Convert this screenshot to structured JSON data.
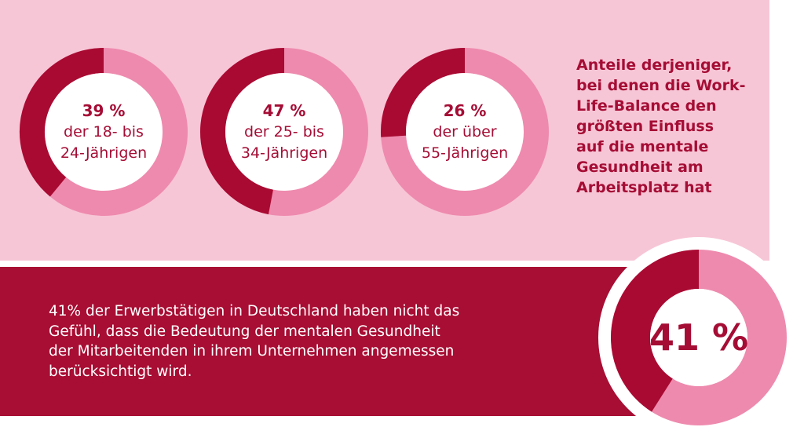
{
  "chart_data": [
    {
      "type": "donut",
      "values": [
        39
      ],
      "value_labels": [
        "39 %"
      ],
      "label_lines": [
        "der 18- bis",
        "24-Jährigen"
      ],
      "color": "#a90a32",
      "track_color": "#ee8aae"
    },
    {
      "type": "donut",
      "values": [
        47
      ],
      "value_labels": [
        "47 %"
      ],
      "label_lines": [
        "der 25- bis",
        "34-Jährigen"
      ],
      "color": "#a90a32",
      "track_color": "#ee8aae"
    },
    {
      "type": "donut",
      "values": [
        26
      ],
      "value_labels": [
        "26 %"
      ],
      "label_lines": [
        "der über",
        "55-Jährigen"
      ],
      "color": "#a90a32",
      "track_color": "#ee8aae"
    },
    {
      "type": "donut",
      "values": [
        41
      ],
      "value_labels": [
        "41 %"
      ],
      "color": "#a90a32",
      "track_color": "#ee8aae"
    }
  ],
  "note_lines": [
    "Anteile derjeniger,",
    "bei denen die Work-",
    "Life-Balance den",
    "größten Einfluss",
    "auf die mentale",
    "Gesundheit am",
    "Arbeitsplatz hat"
  ],
  "statement_lines": [
    "41% der Erwerbstätigen in Deutschland haben nicht das",
    "Gefühl, dass die Bedeutung der mentalen Gesundheit",
    "der Mitarbeitenden in ihrem Unternehmen angemessen",
    "berücksichtigt wird."
  ]
}
